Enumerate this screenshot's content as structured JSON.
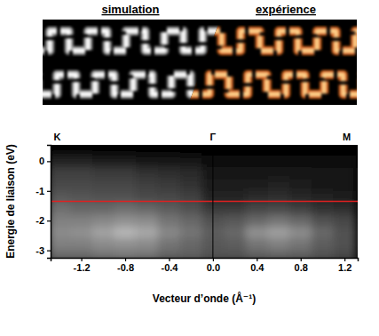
{
  "chart_data": {
    "type": "heatmap",
    "xlabel": "Vecteur d’onde (Å⁻¹)",
    "ylabel": "Energie de liaison (eV)",
    "xlim": [
      -1.48,
      1.32
    ],
    "ylim": [
      -3.25,
      0.55
    ],
    "xticks": [
      -1.2,
      -0.8,
      -0.4,
      {
        "value": 0,
        "label": "0.0"
      },
      0.4,
      0.8,
      1.2
    ],
    "yticks": [
      0,
      -1,
      -2,
      -3
    ],
    "x": [
      -1.4,
      -1.2,
      -1.0,
      -0.8,
      -0.6,
      -0.4,
      -0.2,
      0.0,
      0.2,
      0.4,
      0.6,
      0.8,
      1.0,
      1.2
    ],
    "y": [
      0.4,
      0.0,
      -0.4,
      -0.8,
      -1.2,
      -1.6,
      -2.0,
      -2.4,
      -2.8,
      -3.2
    ],
    "zlim": [
      0,
      1
    ],
    "values": [
      [
        0,
        0,
        0,
        0,
        0,
        0,
        0,
        0,
        0,
        0,
        0,
        0,
        0,
        0
      ],
      [
        0.15,
        0.15,
        0.12,
        0.12,
        0.1,
        0.1,
        0.08,
        0.06,
        0.05,
        0.05,
        0.05,
        0.05,
        0.05,
        0.05
      ],
      [
        0.28,
        0.28,
        0.25,
        0.25,
        0.22,
        0.2,
        0.18,
        0.1,
        0.1,
        0.1,
        0.1,
        0.1,
        0.08,
        0.08
      ],
      [
        0.32,
        0.32,
        0.3,
        0.3,
        0.28,
        0.25,
        0.22,
        0.12,
        0.12,
        0.12,
        0.14,
        0.12,
        0.1,
        0.1
      ],
      [
        0.38,
        0.36,
        0.35,
        0.35,
        0.32,
        0.3,
        0.28,
        0.15,
        0.15,
        0.18,
        0.2,
        0.16,
        0.14,
        0.12
      ],
      [
        0.48,
        0.45,
        0.45,
        0.48,
        0.45,
        0.4,
        0.35,
        0.25,
        0.25,
        0.3,
        0.32,
        0.28,
        0.22,
        0.2
      ],
      [
        0.55,
        0.55,
        0.58,
        0.62,
        0.6,
        0.5,
        0.45,
        0.35,
        0.38,
        0.45,
        0.5,
        0.45,
        0.35,
        0.3
      ],
      [
        0.6,
        0.62,
        0.7,
        0.78,
        0.72,
        0.58,
        0.5,
        0.4,
        0.45,
        0.62,
        0.68,
        0.6,
        0.45,
        0.35
      ],
      [
        0.55,
        0.55,
        0.6,
        0.62,
        0.6,
        0.5,
        0.45,
        0.38,
        0.4,
        0.5,
        0.55,
        0.5,
        0.4,
        0.35
      ],
      [
        0.45,
        0.45,
        0.48,
        0.5,
        0.48,
        0.42,
        0.4,
        0.35,
        0.35,
        0.4,
        0.42,
        0.4,
        0.35,
        0.3
      ]
    ],
    "point_labels": [
      {
        "label": "K",
        "x": -1.42
      },
      {
        "label": "Γ",
        "x": 0
      },
      {
        "label": "M",
        "x": 1.22
      }
    ],
    "reference_lines": [
      {
        "axis": "y",
        "value": -1.35,
        "color": "#e02020"
      },
      {
        "axis": "x",
        "value": 0,
        "color": "#000000"
      }
    ]
  },
  "panel": {
    "left_label": "simulation",
    "right_label": "expérience"
  }
}
